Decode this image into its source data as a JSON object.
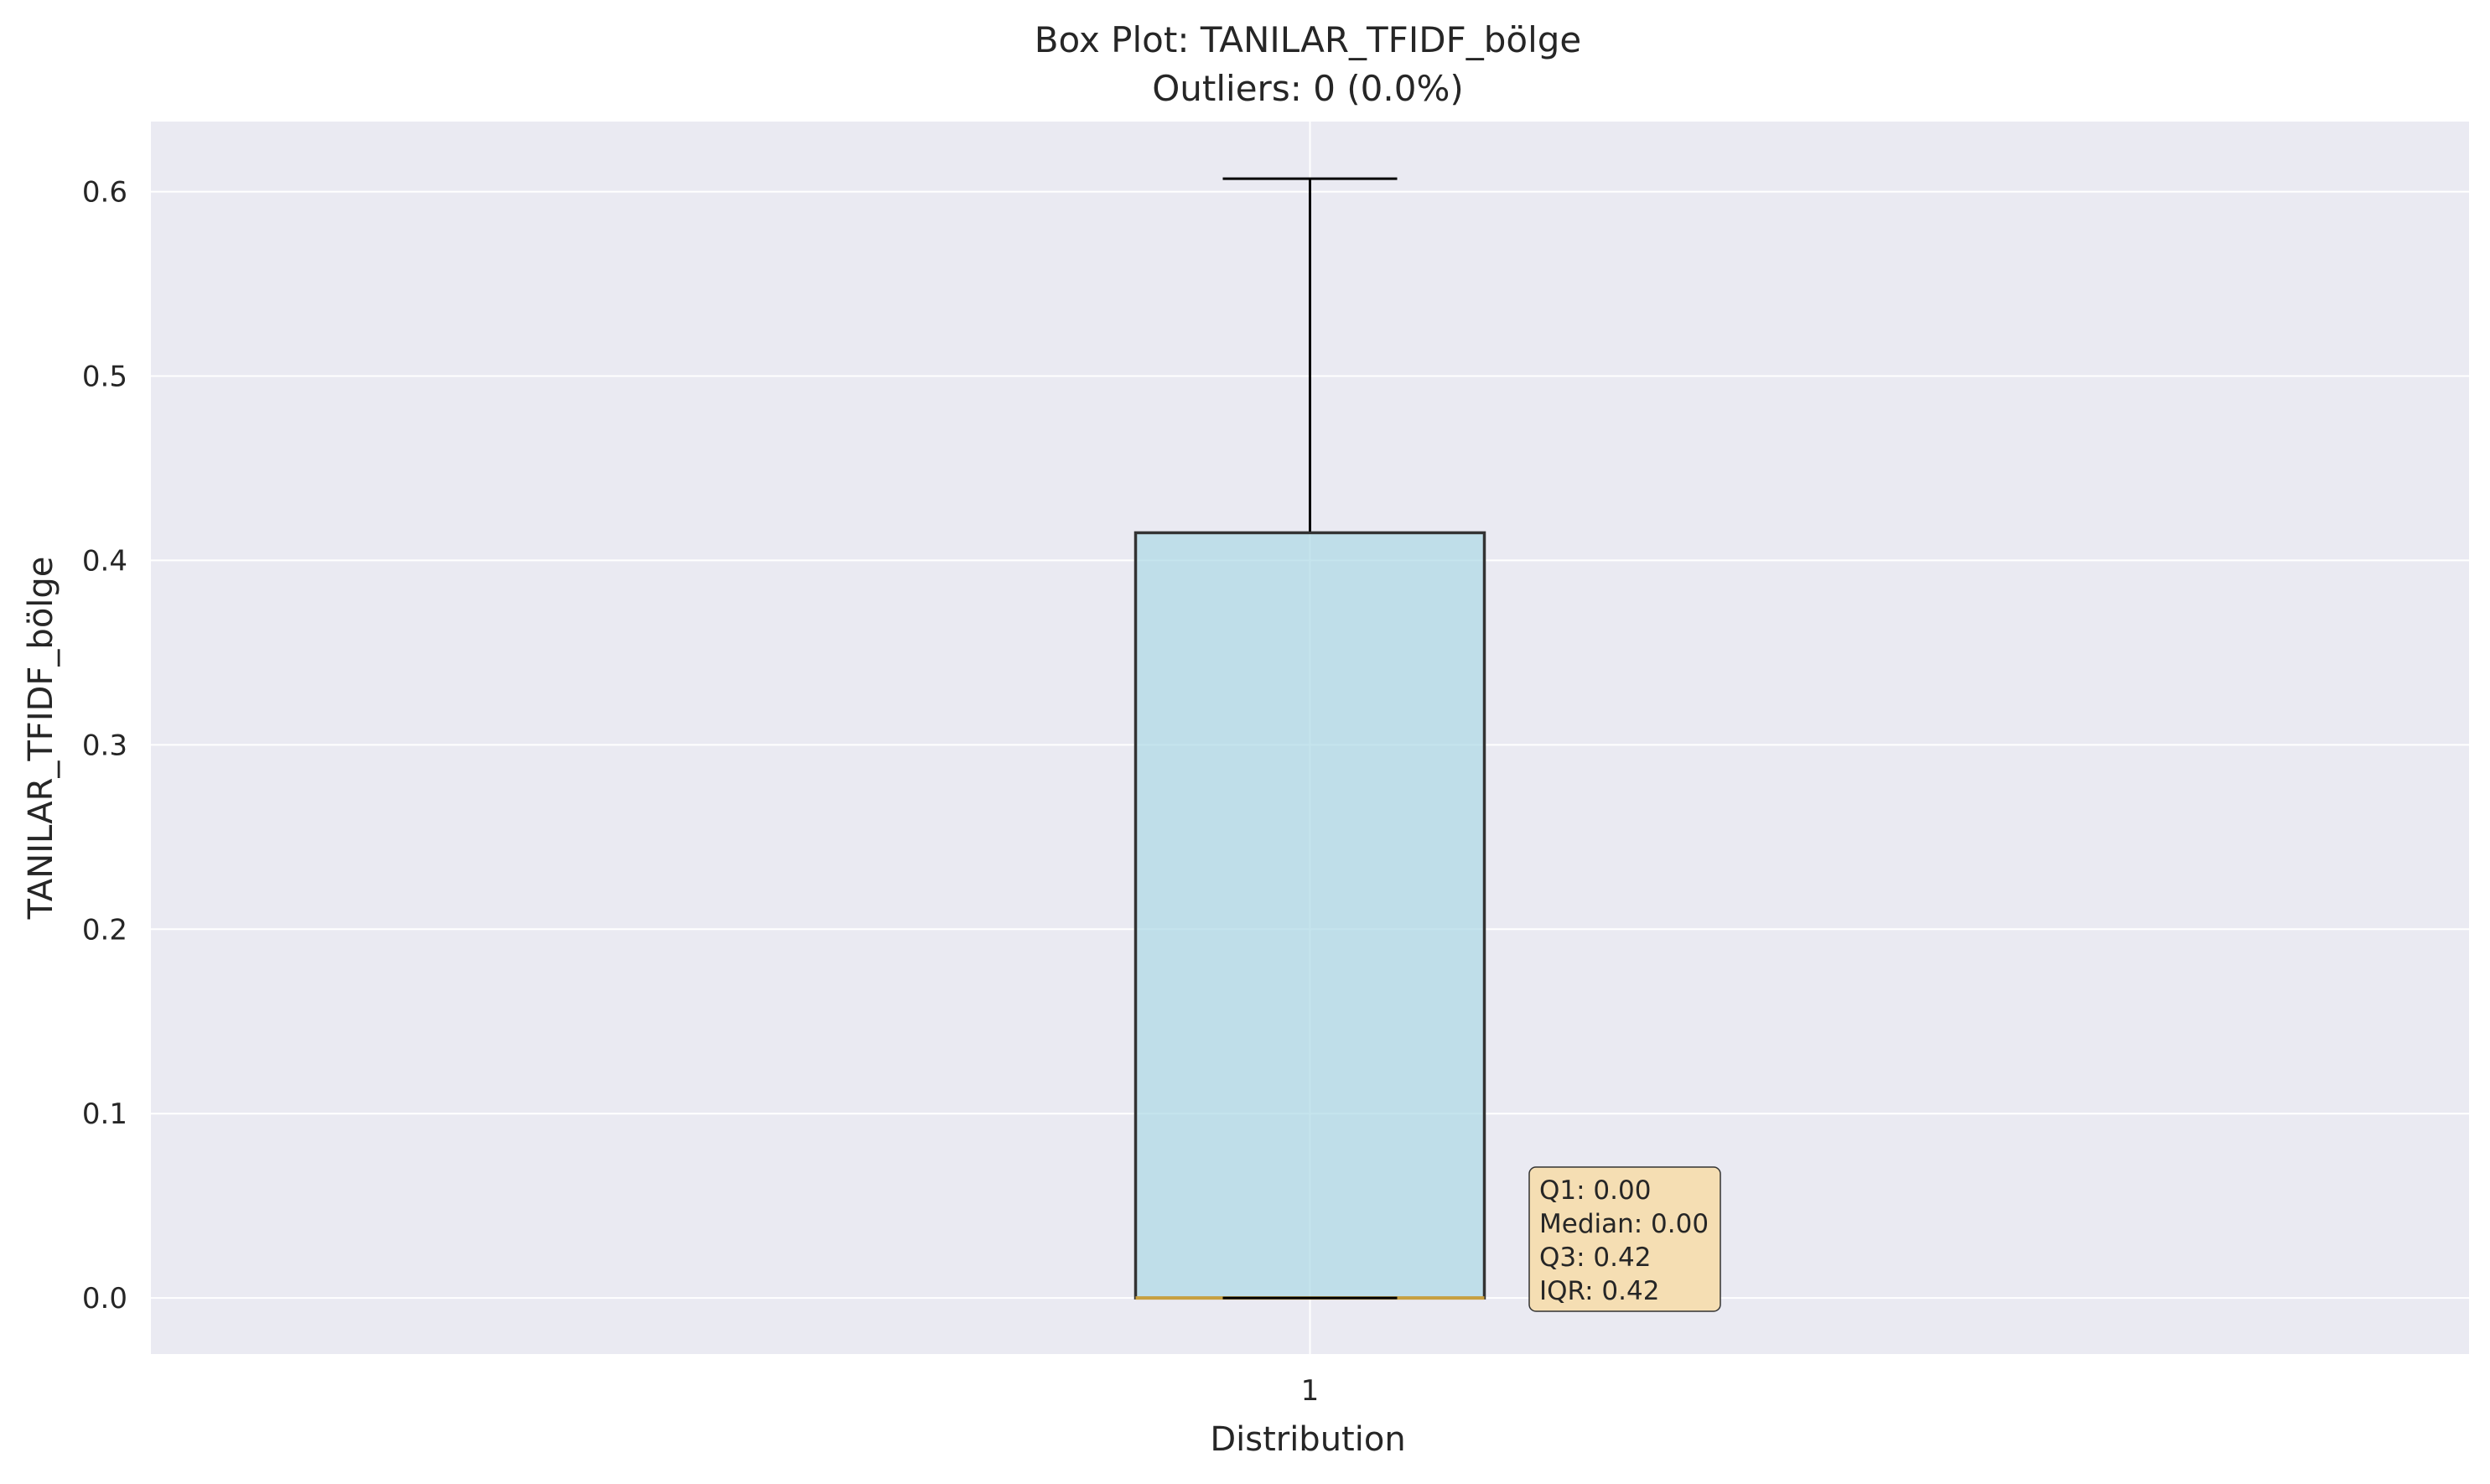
{
  "chart_data": {
    "type": "box",
    "title": "Box Plot: TANILAR_TFIDF_bölge",
    "subtitle": "Outliers: 0 (0.0%)",
    "xlabel": "Distribution",
    "ylabel": "TANILAR_TFIDF_bölge",
    "categories": [
      "1"
    ],
    "ylim": [
      -0.0304,
      0.638
    ],
    "yticks": [
      0.0,
      0.1,
      0.2,
      0.3,
      0.4,
      0.5,
      0.6
    ],
    "ytick_labels": [
      "0.0",
      "0.1",
      "0.2",
      "0.3",
      "0.4",
      "0.5",
      "0.6"
    ],
    "grid": true,
    "box": {
      "whisker_low": 0.0,
      "q1": 0.0,
      "median": 0.0,
      "q3": 0.415,
      "whisker_high": 0.607,
      "outliers": []
    },
    "stats_box": [
      "Q1: 0.00",
      "Median: 0.00",
      "Q3: 0.42",
      "IQR: 0.42"
    ],
    "colors": {
      "plot_bg": "#eaeaf2",
      "box_fill": "#add8e6",
      "box_edge": "#333333",
      "median": "#c8a040",
      "stats_bg": "#f5deb3",
      "grid": "#ffffff"
    }
  }
}
